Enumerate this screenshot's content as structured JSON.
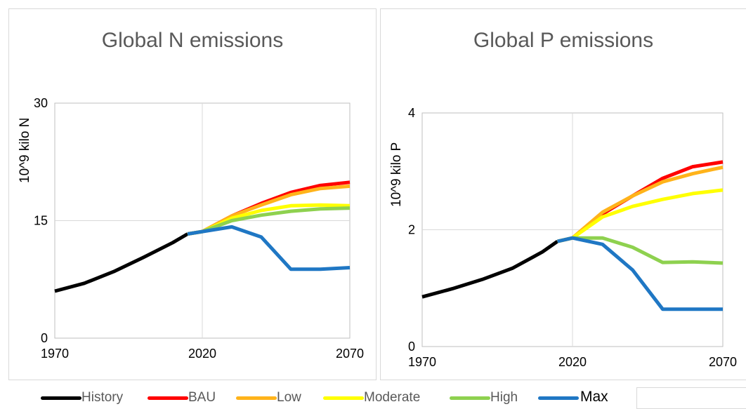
{
  "legend": [
    {
      "name": "History",
      "color": "#000000"
    },
    {
      "name": "BAU",
      "color": "#ff0000"
    },
    {
      "name": "Low",
      "color": "#ffb31a"
    },
    {
      "name": "Moderate",
      "color": "#ffff00"
    },
    {
      "name": "High",
      "color": "#8ed14f"
    },
    {
      "name": "Max",
      "color": "#1f77c4"
    }
  ],
  "chart_data": [
    {
      "type": "line",
      "title": "Global N emissions",
      "ylabel": "10^9 kilo N",
      "xlim": [
        1970,
        2070
      ],
      "ylim": [
        0,
        30
      ],
      "xticks": [
        "1970",
        "2020",
        "2070"
      ],
      "yticks": [
        "0",
        "15",
        "30"
      ],
      "grid": "vertical and horizontal at middle tick",
      "series": [
        {
          "name": "History",
          "x": [
            1970,
            1980,
            1990,
            2000,
            2010,
            2015
          ],
          "y": [
            6.0,
            7.0,
            8.5,
            10.3,
            12.2,
            13.3
          ]
        },
        {
          "name": "BAU",
          "x": [
            2015,
            2020,
            2030,
            2040,
            2050,
            2060,
            2070
          ],
          "y": [
            13.3,
            13.6,
            15.6,
            17.2,
            18.6,
            19.5,
            19.9
          ]
        },
        {
          "name": "Low",
          "x": [
            2015,
            2020,
            2030,
            2040,
            2050,
            2060,
            2070
          ],
          "y": [
            13.3,
            13.6,
            15.6,
            17.0,
            18.3,
            19.1,
            19.4
          ]
        },
        {
          "name": "Moderate",
          "x": [
            2015,
            2020,
            2030,
            2040,
            2050,
            2060,
            2070
          ],
          "y": [
            13.3,
            13.6,
            15.3,
            16.3,
            16.9,
            17.0,
            16.9
          ]
        },
        {
          "name": "High",
          "x": [
            2015,
            2020,
            2030,
            2040,
            2050,
            2060,
            2070
          ],
          "y": [
            13.3,
            13.6,
            15.0,
            15.7,
            16.2,
            16.5,
            16.6
          ]
        },
        {
          "name": "Max",
          "x": [
            2015,
            2020,
            2030,
            2040,
            2050,
            2060,
            2070
          ],
          "y": [
            13.3,
            13.6,
            14.2,
            12.9,
            8.8,
            8.8,
            9.0
          ]
        }
      ]
    },
    {
      "type": "line",
      "title": "Global P emissions",
      "ylabel": "10^9 kilo P",
      "xlim": [
        1970,
        2070
      ],
      "ylim": [
        0,
        4
      ],
      "xticks": [
        "1970",
        "2020",
        "2070"
      ],
      "yticks": [
        "0",
        "2",
        "4"
      ],
      "grid": "vertical and horizontal at middle tick",
      "series": [
        {
          "name": "History",
          "x": [
            1970,
            1980,
            1990,
            2000,
            2010,
            2015
          ],
          "y": [
            0.85,
            0.99,
            1.15,
            1.34,
            1.62,
            1.8
          ]
        },
        {
          "name": "BAU",
          "x": [
            2015,
            2020,
            2030,
            2040,
            2050,
            2060,
            2070
          ],
          "y": [
            1.8,
            1.86,
            2.27,
            2.58,
            2.88,
            3.08,
            3.16
          ]
        },
        {
          "name": "Low",
          "x": [
            2015,
            2020,
            2030,
            2040,
            2050,
            2060,
            2070
          ],
          "y": [
            1.8,
            1.86,
            2.3,
            2.58,
            2.82,
            2.96,
            3.07
          ]
        },
        {
          "name": "Moderate",
          "x": [
            2015,
            2020,
            2030,
            2040,
            2050,
            2060,
            2070
          ],
          "y": [
            1.8,
            1.86,
            2.22,
            2.4,
            2.52,
            2.62,
            2.68
          ]
        },
        {
          "name": "High",
          "x": [
            2015,
            2020,
            2030,
            2040,
            2050,
            2060,
            2070
          ],
          "y": [
            1.8,
            1.86,
            1.86,
            1.7,
            1.44,
            1.45,
            1.43
          ]
        },
        {
          "name": "Max",
          "x": [
            2015,
            2020,
            2030,
            2040,
            2050,
            2060,
            2070
          ],
          "y": [
            1.8,
            1.86,
            1.75,
            1.31,
            0.64,
            0.64,
            0.64
          ]
        }
      ]
    }
  ]
}
